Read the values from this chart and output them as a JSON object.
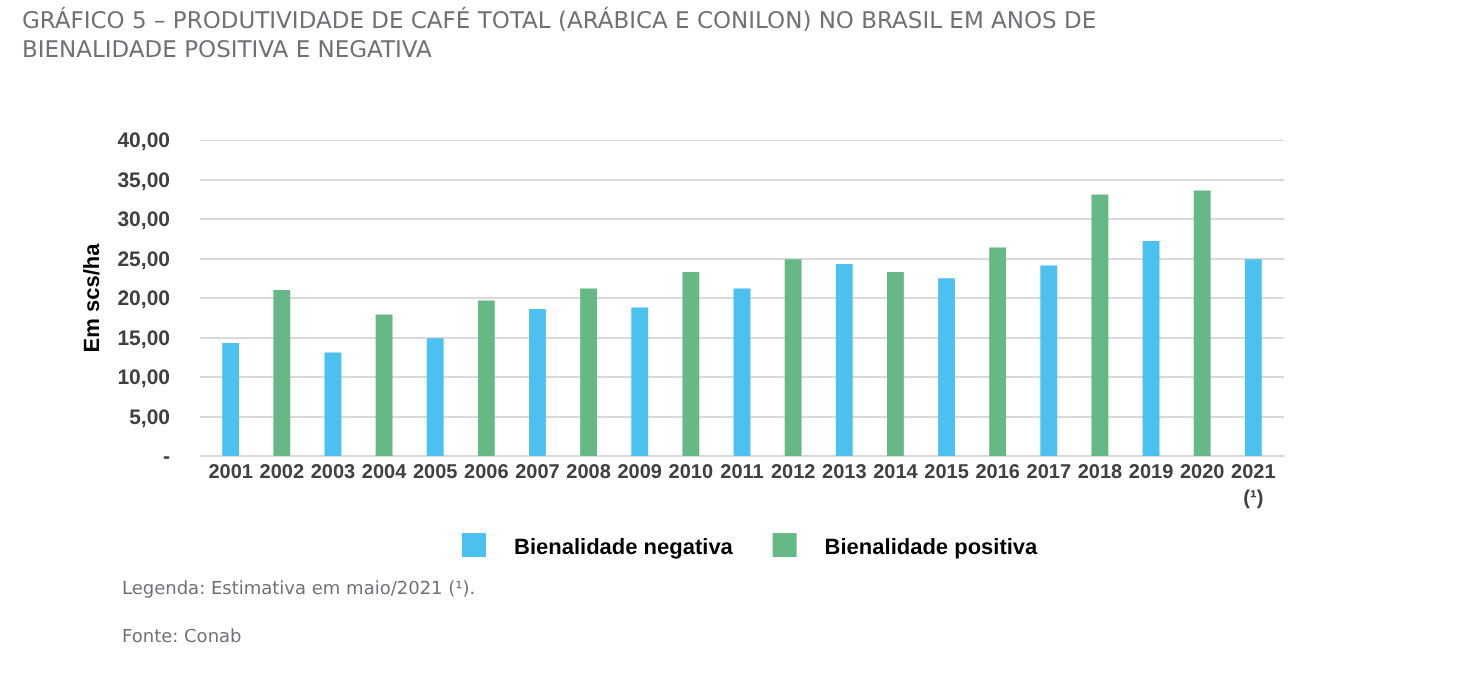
{
  "chart_data": {
    "type": "bar",
    "title": "GRÁFICO 5 – PRODUTIVIDADE DE CAFÉ TOTAL (ARÁBICA E CONILON) NO BRASIL EM ANOS DE\nBIENALIDADE POSITIVA E NEGATIVA",
    "ylabel": "Em scs/ha",
    "categories": [
      "2001",
      "2002",
      "2003",
      "2004",
      "2005",
      "2006",
      "2007",
      "2008",
      "2009",
      "2010",
      "2011",
      "2012",
      "2013",
      "2014",
      "2015",
      "2016",
      "2017",
      "2018",
      "2019",
      "2020",
      "2021\n(¹)"
    ],
    "series": [
      {
        "name": "Bienalidade negativa",
        "color": "#4cc0ee",
        "values": [
          14.3,
          null,
          13.1,
          null,
          14.9,
          null,
          18.6,
          null,
          18.8,
          null,
          21.2,
          null,
          24.3,
          null,
          22.5,
          null,
          24.1,
          null,
          27.2,
          null,
          24.9
        ]
      },
      {
        "name": "Bienalidade positiva",
        "color": "#66b886",
        "values": [
          null,
          21.0,
          null,
          17.9,
          null,
          19.7,
          null,
          21.2,
          null,
          23.3,
          null,
          24.9,
          null,
          23.3,
          null,
          26.4,
          null,
          33.1,
          null,
          33.6,
          null
        ]
      }
    ],
    "ylim": [
      0,
      40
    ],
    "yticks": [
      {
        "value": 0,
        "label": "-"
      },
      {
        "value": 5,
        "label": "5,00"
      },
      {
        "value": 10,
        "label": "10,00"
      },
      {
        "value": 15,
        "label": "15,00"
      },
      {
        "value": 20,
        "label": "20,00"
      },
      {
        "value": 25,
        "label": "25,00"
      },
      {
        "value": 30,
        "label": "30,00"
      },
      {
        "value": 35,
        "label": "35,00"
      },
      {
        "value": 40,
        "label": "40,00"
      }
    ],
    "grid": "y",
    "legend": "bottom",
    "annotations": [
      "Legenda: Estimativa em maio/2021 (¹).",
      "Fonte: Conab"
    ]
  }
}
